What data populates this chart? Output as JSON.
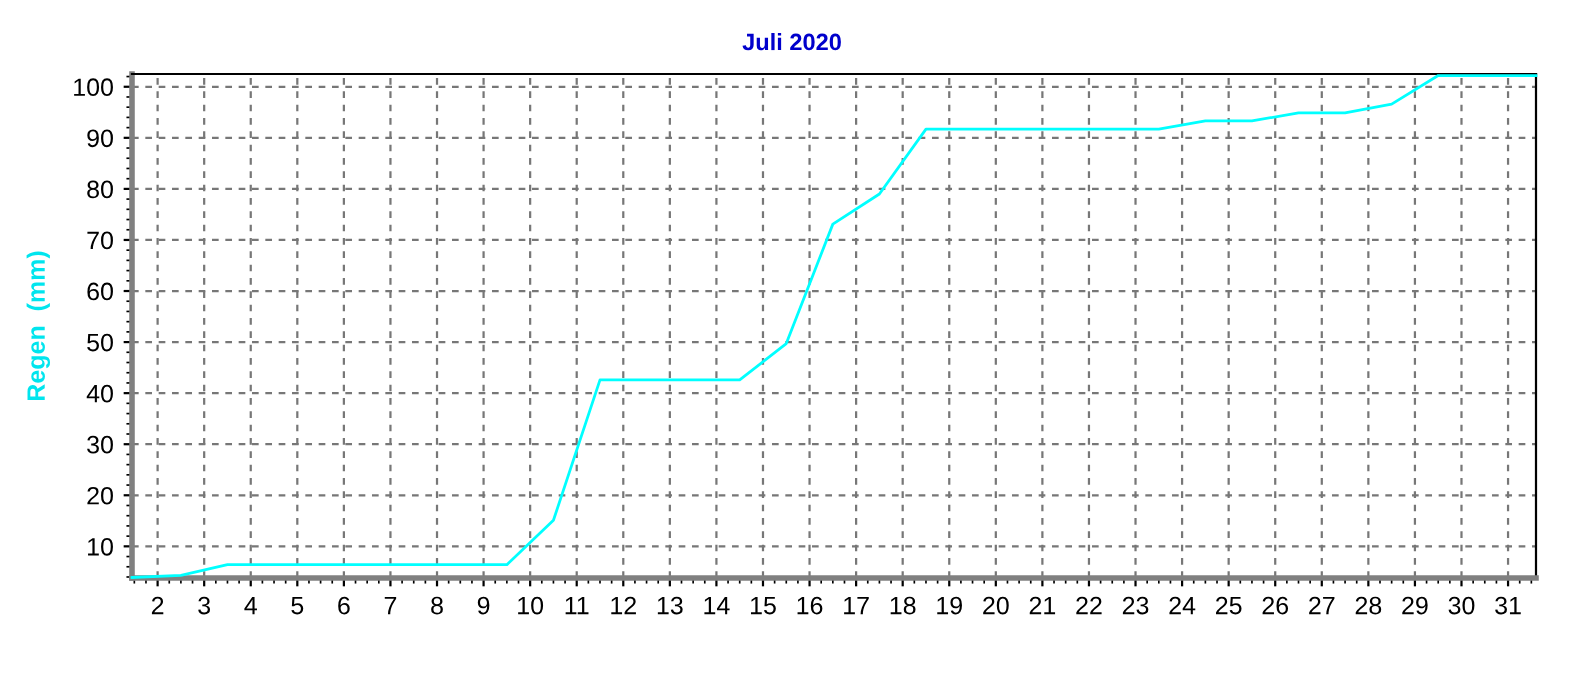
{
  "chart_data": {
    "type": "line",
    "title": "Juli 2020",
    "ylabel": "Regen  (mm)",
    "x": [
      1.45,
      2.5,
      3.5,
      4.5,
      5.5,
      6.5,
      7.5,
      8.5,
      9.5,
      10.5,
      11.5,
      12.5,
      13.5,
      14.5,
      15.5,
      16.5,
      17.5,
      18.5,
      19.5,
      20.5,
      21.5,
      22.5,
      23.5,
      24.5,
      25.5,
      26.5,
      27.5,
      28.5,
      29.5,
      30.5,
      31.6
    ],
    "series": [
      {
        "color": "#00ffff",
        "values": [
          3.9,
          4.3,
          6.4,
          6.4,
          6.4,
          6.4,
          6.4,
          6.4,
          6.4,
          15.1,
          42.6,
          42.6,
          42.6,
          42.6,
          49.7,
          73.1,
          79.0,
          91.7,
          91.7,
          91.7,
          91.7,
          91.7,
          91.7,
          93.3,
          93.3,
          94.9,
          94.9,
          96.6,
          102.2,
          102.2,
          102.2
        ]
      }
    ],
    "xlim": [
      1.45,
      31.6
    ],
    "ylim": [
      3.8,
      102.5
    ],
    "xticks": [
      2,
      3,
      4,
      5,
      6,
      7,
      8,
      9,
      10,
      11,
      12,
      13,
      14,
      15,
      16,
      17,
      18,
      19,
      20,
      21,
      22,
      23,
      24,
      25,
      26,
      27,
      28,
      29,
      30,
      31
    ],
    "yticks": [
      10,
      20,
      30,
      40,
      50,
      60,
      70,
      80,
      90,
      100
    ],
    "grid": true,
    "legend": false,
    "marker": "none",
    "line_style": "solid"
  }
}
